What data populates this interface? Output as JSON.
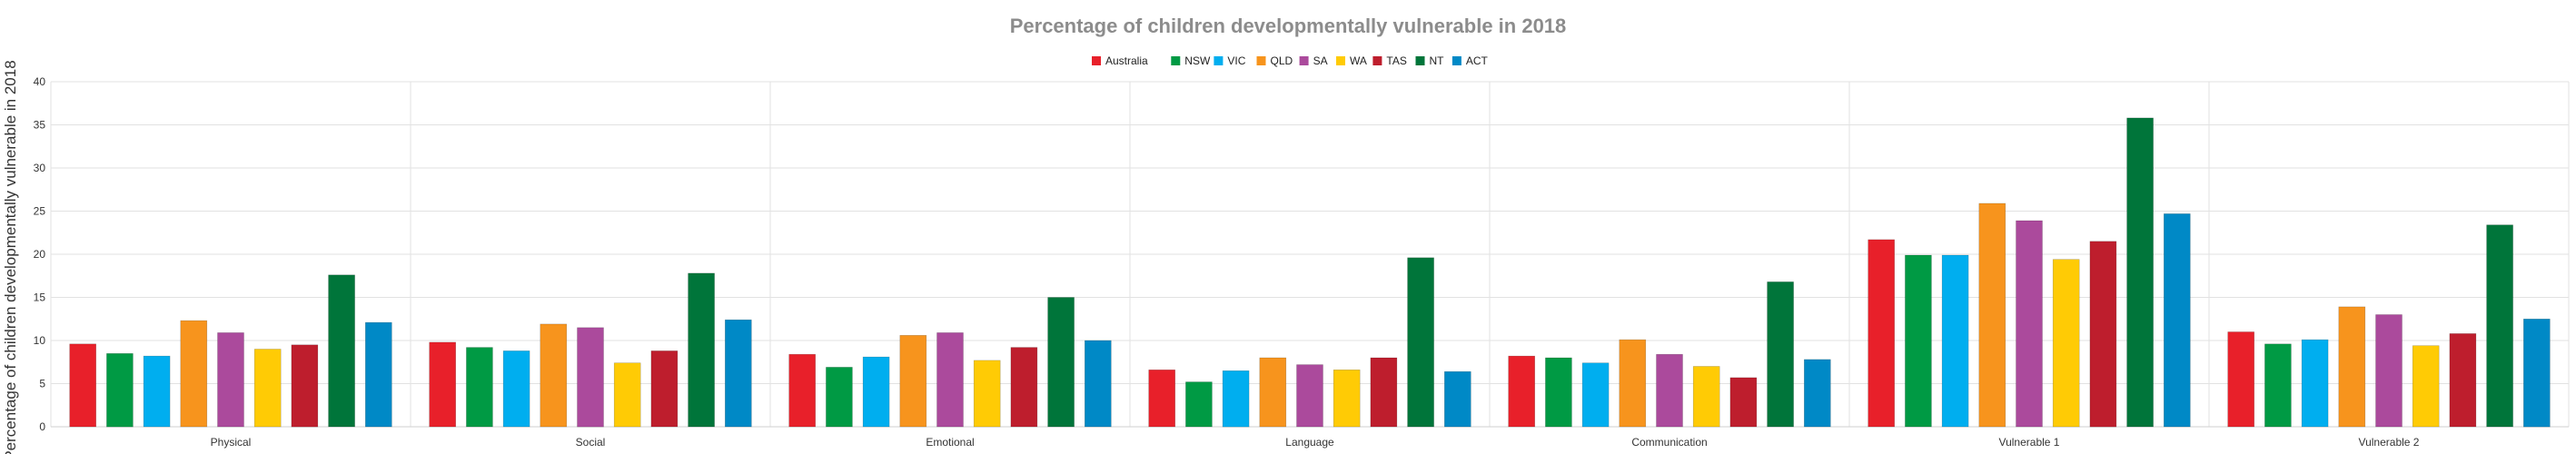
{
  "chart_data": {
    "type": "bar",
    "title": "Percentage of children developmentally vulnerable in 2018",
    "ylabel": "Percentage of children developmentally vulnerable in 2018",
    "xlabel": "",
    "ylim": [
      0,
      40
    ],
    "yticks": [
      0,
      5,
      10,
      15,
      20,
      25,
      30,
      35,
      40
    ],
    "grid": true,
    "legend_position": "top-center",
    "categories": [
      "Physical",
      "Social",
      "Emotional",
      "Language",
      "Communication",
      "Vulnerable 1",
      "Vulnerable 2"
    ],
    "series": [
      {
        "name": "Australia",
        "color": "#e8202a",
        "values": [
          9.6,
          9.8,
          8.4,
          6.6,
          8.2,
          21.7,
          11.0
        ]
      },
      {
        "name": "NSW",
        "color": "#009a44",
        "values": [
          8.5,
          9.2,
          6.9,
          5.2,
          8.0,
          19.9,
          9.6
        ]
      },
      {
        "name": "VIC",
        "color": "#00aeef",
        "values": [
          8.2,
          8.8,
          8.1,
          6.5,
          7.4,
          19.9,
          10.1
        ]
      },
      {
        "name": "QLD",
        "color": "#f7941d",
        "values": [
          12.3,
          11.9,
          10.6,
          8.0,
          10.1,
          25.9,
          13.9
        ]
      },
      {
        "name": "SA",
        "color": "#ab4a9c",
        "values": [
          10.9,
          11.5,
          10.9,
          7.2,
          8.4,
          23.9,
          13.0
        ]
      },
      {
        "name": "WA",
        "color": "#ffcb05",
        "values": [
          9.0,
          7.4,
          7.7,
          6.6,
          7.0,
          19.4,
          9.4
        ]
      },
      {
        "name": "TAS",
        "color": "#be1e2d",
        "values": [
          9.5,
          8.8,
          9.2,
          8.0,
          5.7,
          21.5,
          10.8
        ]
      },
      {
        "name": "NT",
        "color": "#00753a",
        "values": [
          17.6,
          17.8,
          15.0,
          19.6,
          16.8,
          35.8,
          23.4
        ]
      },
      {
        "name": "ACT",
        "color": "#0089c6",
        "values": [
          12.1,
          12.4,
          10.0,
          6.4,
          7.8,
          24.7,
          12.5
        ]
      }
    ]
  }
}
